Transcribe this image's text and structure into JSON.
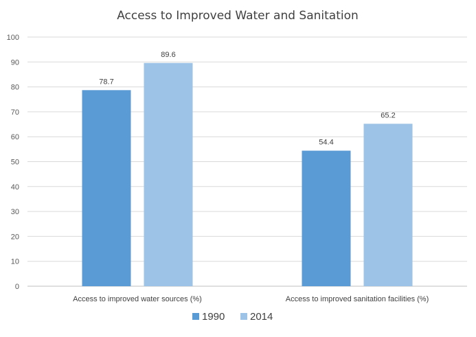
{
  "chart_data": {
    "type": "bar",
    "title": "Access to Improved Water and Sanitation",
    "categories": [
      "Access to improved water sources (%)",
      "Access to improved sanitation facilities (%)"
    ],
    "series": [
      {
        "name": "1990",
        "values": [
          78.7,
          54.4
        ],
        "color": "#5b9bd5"
      },
      {
        "name": "2014",
        "values": [
          89.6,
          65.2
        ],
        "color": "#9dc3e6"
      }
    ],
    "data_labels": [
      [
        "78.7",
        "54.4"
      ],
      [
        "89.6",
        "65.2"
      ]
    ],
    "ylim": [
      0,
      100
    ],
    "yticks": [
      "0",
      "10",
      "20",
      "30",
      "40",
      "50",
      "60",
      "70",
      "80",
      "90",
      "100"
    ],
    "xlabel": "",
    "ylabel": "",
    "grid": true,
    "legend_position": "bottom"
  }
}
